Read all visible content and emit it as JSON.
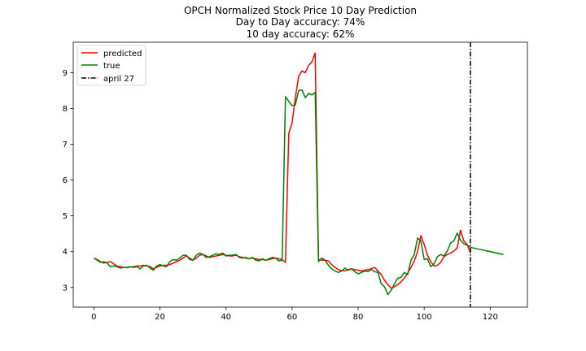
{
  "chart_data": {
    "type": "line",
    "title": "OPCH Normalized Stock Price 10 Day Prediction",
    "subtitle_lines": [
      "Day to Day accuracy: 74%",
      "10 day accuracy: 62%"
    ],
    "xlabel": "",
    "ylabel": "",
    "xlim": [
      -6.25,
      131.25
    ],
    "ylim": [
      2.45,
      9.85
    ],
    "x_ticks": [
      0,
      20,
      40,
      60,
      80,
      100,
      120
    ],
    "y_ticks": [
      3,
      4,
      5,
      6,
      7,
      8,
      9
    ],
    "grid": false,
    "legend": "top-left",
    "series": [
      {
        "name": "predicted",
        "color": "#ff0000",
        "style": "solid",
        "points": [
          [
            0,
            3.82
          ],
          [
            1,
            3.78
          ],
          [
            2,
            3.72
          ],
          [
            3,
            3.68
          ],
          [
            4,
            3.7
          ],
          [
            5,
            3.72
          ],
          [
            6,
            3.66
          ],
          [
            7,
            3.6
          ],
          [
            8,
            3.58
          ],
          [
            9,
            3.56
          ],
          [
            10,
            3.55
          ],
          [
            11,
            3.57
          ],
          [
            12,
            3.58
          ],
          [
            13,
            3.6
          ],
          [
            14,
            3.6
          ],
          [
            15,
            3.62
          ],
          [
            16,
            3.6
          ],
          [
            17,
            3.58
          ],
          [
            18,
            3.52
          ],
          [
            19,
            3.56
          ],
          [
            20,
            3.6
          ],
          [
            21,
            3.62
          ],
          [
            22,
            3.62
          ],
          [
            23,
            3.64
          ],
          [
            24,
            3.68
          ],
          [
            25,
            3.72
          ],
          [
            26,
            3.76
          ],
          [
            27,
            3.82
          ],
          [
            28,
            3.88
          ],
          [
            29,
            3.82
          ],
          [
            30,
            3.76
          ],
          [
            31,
            3.82
          ],
          [
            32,
            3.9
          ],
          [
            33,
            3.92
          ],
          [
            34,
            3.88
          ],
          [
            35,
            3.84
          ],
          [
            36,
            3.86
          ],
          [
            37,
            3.88
          ],
          [
            38,
            3.9
          ],
          [
            39,
            3.92
          ],
          [
            40,
            3.9
          ],
          [
            41,
            3.88
          ],
          [
            42,
            3.88
          ],
          [
            43,
            3.9
          ],
          [
            44,
            3.86
          ],
          [
            45,
            3.84
          ],
          [
            46,
            3.82
          ],
          [
            47,
            3.8
          ],
          [
            48,
            3.82
          ],
          [
            49,
            3.8
          ],
          [
            50,
            3.78
          ],
          [
            51,
            3.78
          ],
          [
            52,
            3.76
          ],
          [
            53,
            3.78
          ],
          [
            54,
            3.8
          ],
          [
            55,
            3.82
          ],
          [
            56,
            3.8
          ],
          [
            57,
            3.78
          ],
          [
            58,
            3.7
          ],
          [
            59,
            7.3
          ],
          [
            60,
            7.6
          ],
          [
            61,
            8.3
          ],
          [
            62,
            8.9
          ],
          [
            63,
            9.05
          ],
          [
            64,
            9.0
          ],
          [
            65,
            9.2
          ],
          [
            66,
            9.3
          ],
          [
            67,
            9.55
          ],
          [
            68,
            3.78
          ],
          [
            69,
            3.76
          ],
          [
            70,
            3.76
          ],
          [
            71,
            3.74
          ],
          [
            72,
            3.64
          ],
          [
            73,
            3.56
          ],
          [
            74,
            3.5
          ],
          [
            75,
            3.47
          ],
          [
            76,
            3.46
          ],
          [
            77,
            3.5
          ],
          [
            78,
            3.52
          ],
          [
            79,
            3.5
          ],
          [
            80,
            3.48
          ],
          [
            81,
            3.46
          ],
          [
            82,
            3.48
          ],
          [
            83,
            3.5
          ],
          [
            84,
            3.52
          ],
          [
            85,
            3.56
          ],
          [
            86,
            3.46
          ],
          [
            87,
            3.36
          ],
          [
            88,
            3.2
          ],
          [
            89,
            3.08
          ],
          [
            90,
            2.98
          ],
          [
            91,
            3.02
          ],
          [
            92,
            3.08
          ],
          [
            93,
            3.16
          ],
          [
            94,
            3.26
          ],
          [
            95,
            3.4
          ],
          [
            96,
            3.56
          ],
          [
            97,
            3.74
          ],
          [
            98,
            4.0
          ],
          [
            99,
            4.45
          ],
          [
            100,
            4.2
          ],
          [
            101,
            3.9
          ],
          [
            102,
            3.72
          ],
          [
            103,
            3.6
          ],
          [
            104,
            3.62
          ],
          [
            105,
            3.7
          ],
          [
            106,
            3.86
          ],
          [
            107,
            3.92
          ],
          [
            108,
            3.96
          ],
          [
            109,
            4.02
          ],
          [
            110,
            4.1
          ],
          [
            111,
            4.6
          ],
          [
            112,
            4.3
          ],
          [
            113,
            4.2
          ],
          [
            114,
            3.96
          ]
        ]
      },
      {
        "name": "true",
        "color": "#008000",
        "style": "solid",
        "points": [
          [
            0,
            3.82
          ],
          [
            1,
            3.76
          ],
          [
            2,
            3.7
          ],
          [
            3,
            3.72
          ],
          [
            4,
            3.68
          ],
          [
            5,
            3.58
          ],
          [
            6,
            3.6
          ],
          [
            7,
            3.58
          ],
          [
            8,
            3.54
          ],
          [
            9,
            3.56
          ],
          [
            10,
            3.56
          ],
          [
            11,
            3.58
          ],
          [
            12,
            3.56
          ],
          [
            13,
            3.58
          ],
          [
            14,
            3.52
          ],
          [
            15,
            3.6
          ],
          [
            16,
            3.62
          ],
          [
            17,
            3.54
          ],
          [
            18,
            3.48
          ],
          [
            19,
            3.6
          ],
          [
            20,
            3.64
          ],
          [
            21,
            3.6
          ],
          [
            22,
            3.58
          ],
          [
            23,
            3.72
          ],
          [
            24,
            3.78
          ],
          [
            25,
            3.76
          ],
          [
            26,
            3.82
          ],
          [
            27,
            3.9
          ],
          [
            28,
            3.9
          ],
          [
            29,
            3.78
          ],
          [
            30,
            3.76
          ],
          [
            31,
            3.9
          ],
          [
            32,
            3.96
          ],
          [
            33,
            3.92
          ],
          [
            34,
            3.84
          ],
          [
            35,
            3.86
          ],
          [
            36,
            3.9
          ],
          [
            37,
            3.94
          ],
          [
            38,
            3.92
          ],
          [
            39,
            3.96
          ],
          [
            40,
            3.88
          ],
          [
            41,
            3.9
          ],
          [
            42,
            3.9
          ],
          [
            43,
            3.92
          ],
          [
            44,
            3.84
          ],
          [
            45,
            3.82
          ],
          [
            46,
            3.84
          ],
          [
            47,
            3.8
          ],
          [
            48,
            3.84
          ],
          [
            49,
            3.76
          ],
          [
            50,
            3.74
          ],
          [
            51,
            3.8
          ],
          [
            52,
            3.76
          ],
          [
            53,
            3.8
          ],
          [
            54,
            3.84
          ],
          [
            55,
            3.82
          ],
          [
            56,
            3.74
          ],
          [
            57,
            3.76
          ],
          [
            58,
            8.33
          ],
          [
            59,
            8.2
          ],
          [
            60,
            8.08
          ],
          [
            61,
            8.1
          ],
          [
            62,
            8.5
          ],
          [
            63,
            8.52
          ],
          [
            64,
            8.3
          ],
          [
            65,
            8.42
          ],
          [
            66,
            8.38
          ],
          [
            67,
            8.45
          ],
          [
            68,
            3.72
          ],
          [
            69,
            3.82
          ],
          [
            70,
            3.76
          ],
          [
            71,
            3.62
          ],
          [
            72,
            3.52
          ],
          [
            73,
            3.46
          ],
          [
            74,
            3.42
          ],
          [
            75,
            3.46
          ],
          [
            76,
            3.54
          ],
          [
            77,
            3.48
          ],
          [
            78,
            3.52
          ],
          [
            79,
            3.44
          ],
          [
            80,
            3.38
          ],
          [
            81,
            3.42
          ],
          [
            82,
            3.46
          ],
          [
            83,
            3.44
          ],
          [
            84,
            3.5
          ],
          [
            85,
            3.44
          ],
          [
            86,
            3.42
          ],
          [
            87,
            3.1
          ],
          [
            88,
            3.02
          ],
          [
            89,
            2.8
          ],
          [
            90,
            2.92
          ],
          [
            91,
            3.1
          ],
          [
            92,
            3.26
          ],
          [
            93,
            3.28
          ],
          [
            94,
            3.42
          ],
          [
            95,
            3.36
          ],
          [
            96,
            3.76
          ],
          [
            97,
            3.92
          ],
          [
            98,
            4.38
          ],
          [
            99,
            4.3
          ],
          [
            100,
            3.78
          ],
          [
            101,
            3.8
          ],
          [
            102,
            3.58
          ],
          [
            103,
            3.66
          ],
          [
            104,
            3.86
          ],
          [
            105,
            3.92
          ],
          [
            106,
            3.88
          ],
          [
            107,
            4.02
          ],
          [
            108,
            4.24
          ],
          [
            109,
            4.3
          ],
          [
            110,
            4.52
          ],
          [
            111,
            4.32
          ],
          [
            112,
            4.22
          ],
          [
            113,
            4.18
          ],
          [
            114,
            4.12
          ],
          [
            115,
            4.1
          ],
          [
            116,
            4.08
          ],
          [
            117,
            4.06
          ],
          [
            118,
            4.04
          ],
          [
            119,
            4.02
          ],
          [
            120,
            4.0
          ],
          [
            121,
            3.98
          ],
          [
            122,
            3.96
          ],
          [
            123,
            3.94
          ],
          [
            124,
            3.92
          ]
        ]
      },
      {
        "name": "april 27",
        "color": "#000000",
        "style": "dashdot",
        "vline_x": 114
      }
    ]
  }
}
